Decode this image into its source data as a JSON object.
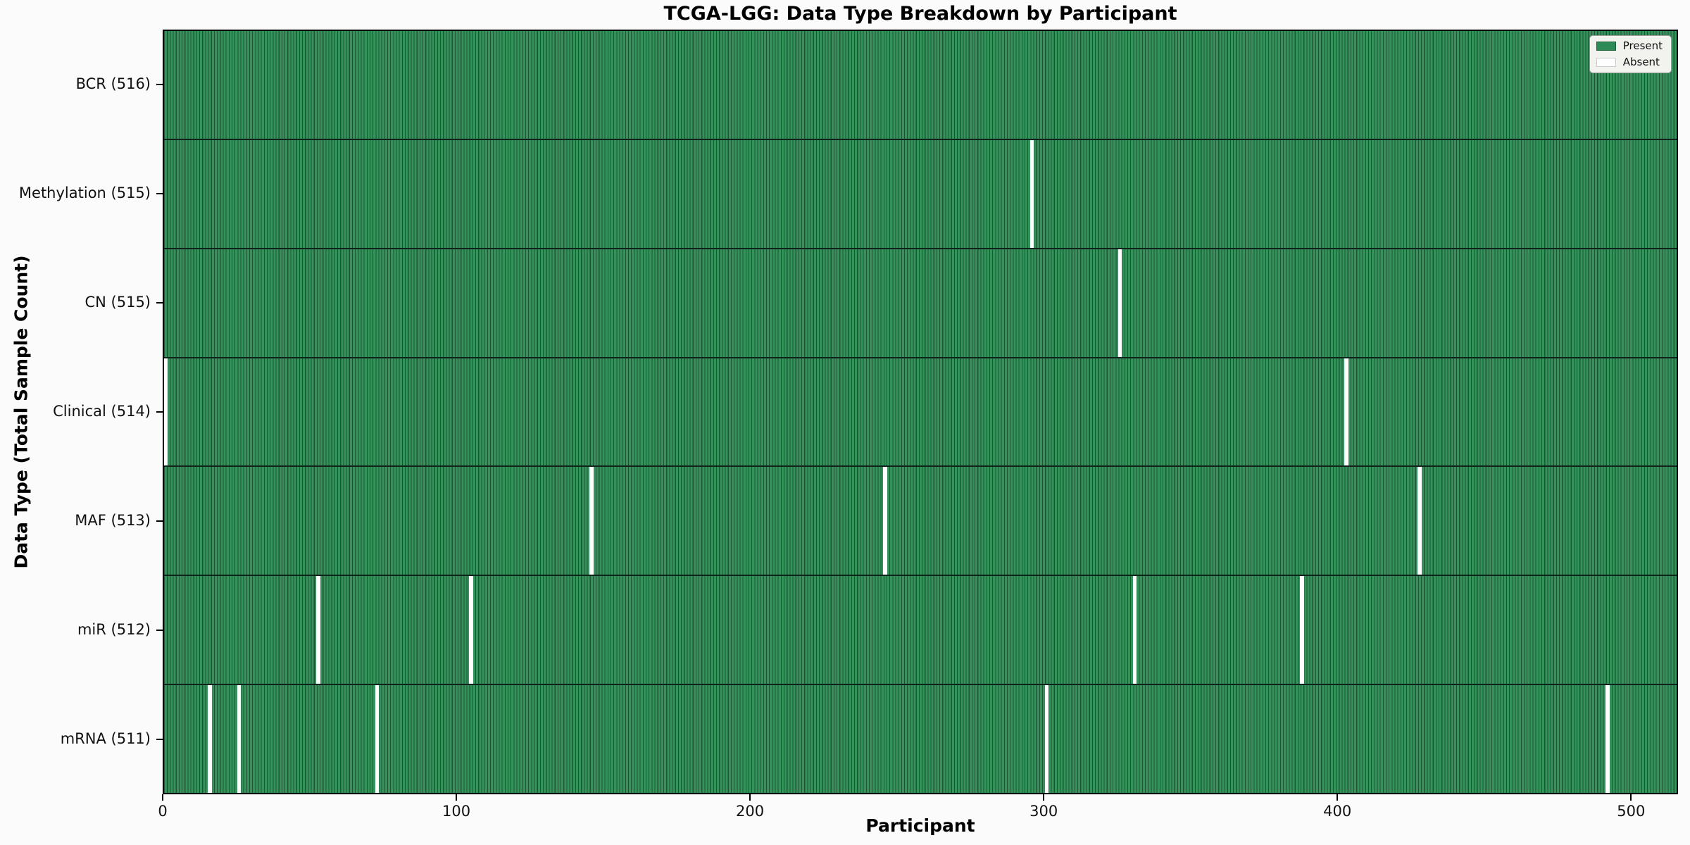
{
  "title": "TCGA-LGG: Data Type Breakdown by Participant",
  "x_axis_label": "Participant",
  "y_axis_label": "Data Type (Total Sample Count)",
  "legend": {
    "present_label": "Present",
    "absent_label": "Absent"
  },
  "colors": {
    "present": "#35925B",
    "present_swatch": "#2e8b57",
    "absent": "#ffffff",
    "cell_edge": "rgba(10,35,22,0.55)",
    "row_separator": "#10231a",
    "axis": "#000000"
  },
  "chart_data": {
    "type": "heatmap",
    "title": "TCGA-LGG: Data Type Breakdown by Participant",
    "xlabel": "Participant",
    "ylabel": "Data Type (Total Sample Count)",
    "legend_entries": [
      "Present",
      "Absent"
    ],
    "legend_position": "upper right",
    "n_participants": 516,
    "x_range": [
      0,
      516
    ],
    "x_ticks": [
      0,
      100,
      200,
      300,
      400,
      500
    ],
    "grid": false,
    "rows": [
      {
        "label": "BCR (516)",
        "data_type": "BCR",
        "total_sample_count": 516,
        "absent_participants": []
      },
      {
        "label": "Methylation (515)",
        "data_type": "Methylation",
        "total_sample_count": 515,
        "absent_participants": [
          295
        ]
      },
      {
        "label": "CN (515)",
        "data_type": "CN",
        "total_sample_count": 515,
        "absent_participants": [
          325
        ]
      },
      {
        "label": "Clinical (514)",
        "data_type": "Clinical",
        "total_sample_count": 514,
        "absent_participants": [
          0,
          402
        ]
      },
      {
        "label": "MAF (513)",
        "data_type": "MAF",
        "total_sample_count": 513,
        "absent_participants": [
          145,
          245,
          427
        ]
      },
      {
        "label": "miR (512)",
        "data_type": "miR",
        "total_sample_count": 512,
        "absent_participants": [
          52,
          104,
          330,
          387
        ]
      },
      {
        "label": "mRNA (511)",
        "data_type": "mRNA",
        "total_sample_count": 511,
        "absent_participants": [
          15,
          25,
          72,
          300,
          491
        ]
      }
    ]
  }
}
